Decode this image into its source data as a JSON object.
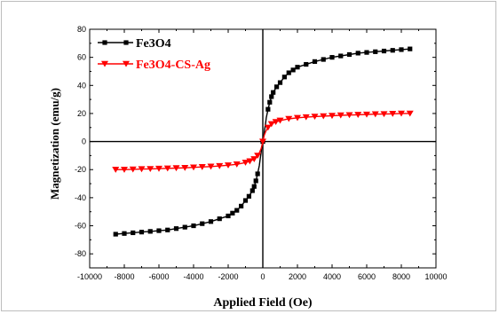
{
  "chart_data": {
    "type": "line",
    "xlabel": "Applied Field (Oe)",
    "ylabel": "Magnetization (emu/g)",
    "xlim": [
      -10000,
      10000
    ],
    "ylim": [
      -90,
      80
    ],
    "xticks": [
      -10000,
      -8000,
      -6000,
      -4000,
      -2000,
      0,
      2000,
      4000,
      6000,
      8000,
      10000
    ],
    "yticks": [
      -80,
      -60,
      -40,
      -20,
      0,
      20,
      40,
      60,
      80
    ],
    "legend_position": "top-left",
    "grid": false,
    "zero_lines": true,
    "series": [
      {
        "name": "Fe3O4",
        "color": "#000000",
        "marker": "square",
        "x": [
          -8500,
          -8000,
          -7500,
          -7000,
          -6500,
          -6000,
          -5500,
          -5000,
          -4500,
          -4000,
          -3500,
          -3000,
          -2500,
          -2000,
          -1750,
          -1500,
          -1250,
          -1000,
          -800,
          -600,
          -500,
          -400,
          -300,
          -200,
          -150,
          -100,
          -50,
          0,
          50,
          100,
          150,
          200,
          300,
          400,
          500,
          600,
          800,
          1000,
          1250,
          1500,
          1750,
          2000,
          2500,
          3000,
          3500,
          4000,
          4500,
          5000,
          5500,
          6000,
          6500,
          7000,
          7500,
          8000,
          8500
        ],
        "y": [
          -66,
          -65.5,
          -65,
          -64.5,
          -64,
          -63.5,
          -63,
          -62,
          -61,
          -60,
          -58.5,
          -57,
          -55,
          -53,
          -51,
          -49,
          -46,
          -42,
          -39,
          -35,
          -32,
          -28,
          -23,
          -17,
          -12,
          -8,
          -3,
          0,
          3,
          8,
          12,
          17,
          23,
          28,
          32,
          35,
          39,
          42,
          46,
          49,
          51,
          53,
          55,
          57,
          58.5,
          60,
          61,
          62,
          63,
          63.5,
          64,
          64.5,
          65,
          65.5,
          66
        ]
      },
      {
        "name": "Fe3O4-CS-Ag",
        "color": "#ff0000",
        "marker": "triangle-down",
        "x": [
          -8500,
          -8000,
          -7500,
          -7000,
          -6500,
          -6000,
          -5500,
          -5000,
          -4500,
          -4000,
          -3500,
          -3000,
          -2500,
          -2000,
          -1500,
          -1000,
          -750,
          -500,
          -300,
          -200,
          -100,
          -50,
          0,
          50,
          100,
          200,
          300,
          500,
          750,
          1000,
          1500,
          2000,
          2500,
          3000,
          3500,
          4000,
          4500,
          5000,
          5500,
          6000,
          6500,
          7000,
          7500,
          8000,
          8500
        ],
        "y": [
          -20,
          -20,
          -19.8,
          -19.6,
          -19.5,
          -19.3,
          -19.1,
          -18.9,
          -18.7,
          -18.4,
          -18.1,
          -17.8,
          -17.4,
          -16.9,
          -16.2,
          -15,
          -14,
          -12.5,
          -10,
          -8,
          -5,
          -3,
          0,
          3,
          5,
          8,
          10,
          12.5,
          14,
          15,
          16.2,
          16.9,
          17.4,
          17.8,
          18.1,
          18.4,
          18.7,
          18.9,
          19.1,
          19.3,
          19.5,
          19.6,
          19.8,
          20,
          20
        ]
      }
    ]
  }
}
